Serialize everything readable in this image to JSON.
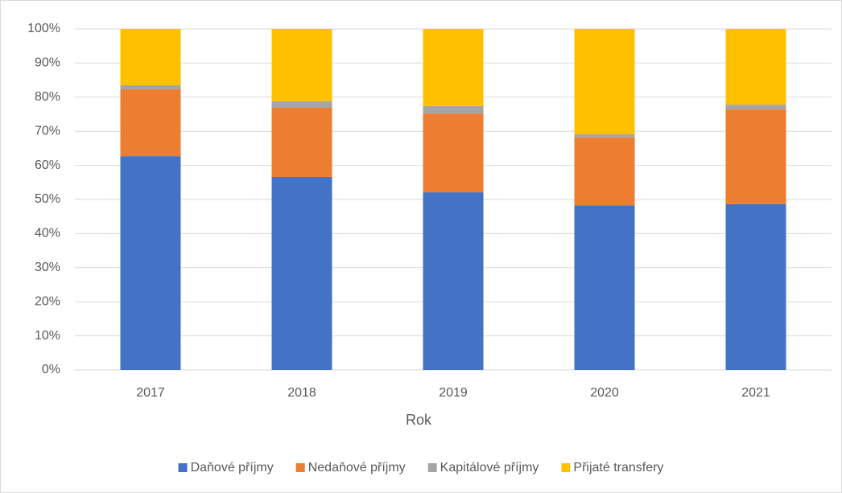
{
  "chart_data": {
    "type": "bar",
    "stacked": true,
    "x_label": "Rok",
    "categories": [
      "2017",
      "2018",
      "2019",
      "2020",
      "2021"
    ],
    "series": [
      {
        "name": "Daňové příjmy",
        "color": "#4472c4",
        "values": [
          62.7,
          56.6,
          52.1,
          48.3,
          48.6
        ]
      },
      {
        "name": "Nedaňové příjmy",
        "color": "#ed7d31",
        "values": [
          19.6,
          20.3,
          23.1,
          19.9,
          27.8
        ]
      },
      {
        "name": "Kapitálové příjmy",
        "color": "#a5a5a5",
        "values": [
          1.2,
          1.9,
          2.2,
          0.9,
          1.4
        ]
      },
      {
        "name": "Přijaté transfery",
        "color": "#ffc000",
        "values": [
          16.5,
          21.2,
          22.6,
          30.9,
          22.2
        ]
      }
    ],
    "ylim": [
      0,
      100
    ],
    "yticks": [
      {
        "value": 0,
        "label": "0%"
      },
      {
        "value": 10,
        "label": "10%"
      },
      {
        "value": 20,
        "label": "20%"
      },
      {
        "value": 30,
        "label": "30%"
      },
      {
        "value": 40,
        "label": "40%"
      },
      {
        "value": 50,
        "label": "50%"
      },
      {
        "value": 60,
        "label": "60%"
      },
      {
        "value": 70,
        "label": "70%"
      },
      {
        "value": 80,
        "label": "80%"
      },
      {
        "value": 90,
        "label": "90%"
      },
      {
        "value": 100,
        "label": "100%"
      }
    ],
    "grid": true,
    "legend": "bottom"
  }
}
